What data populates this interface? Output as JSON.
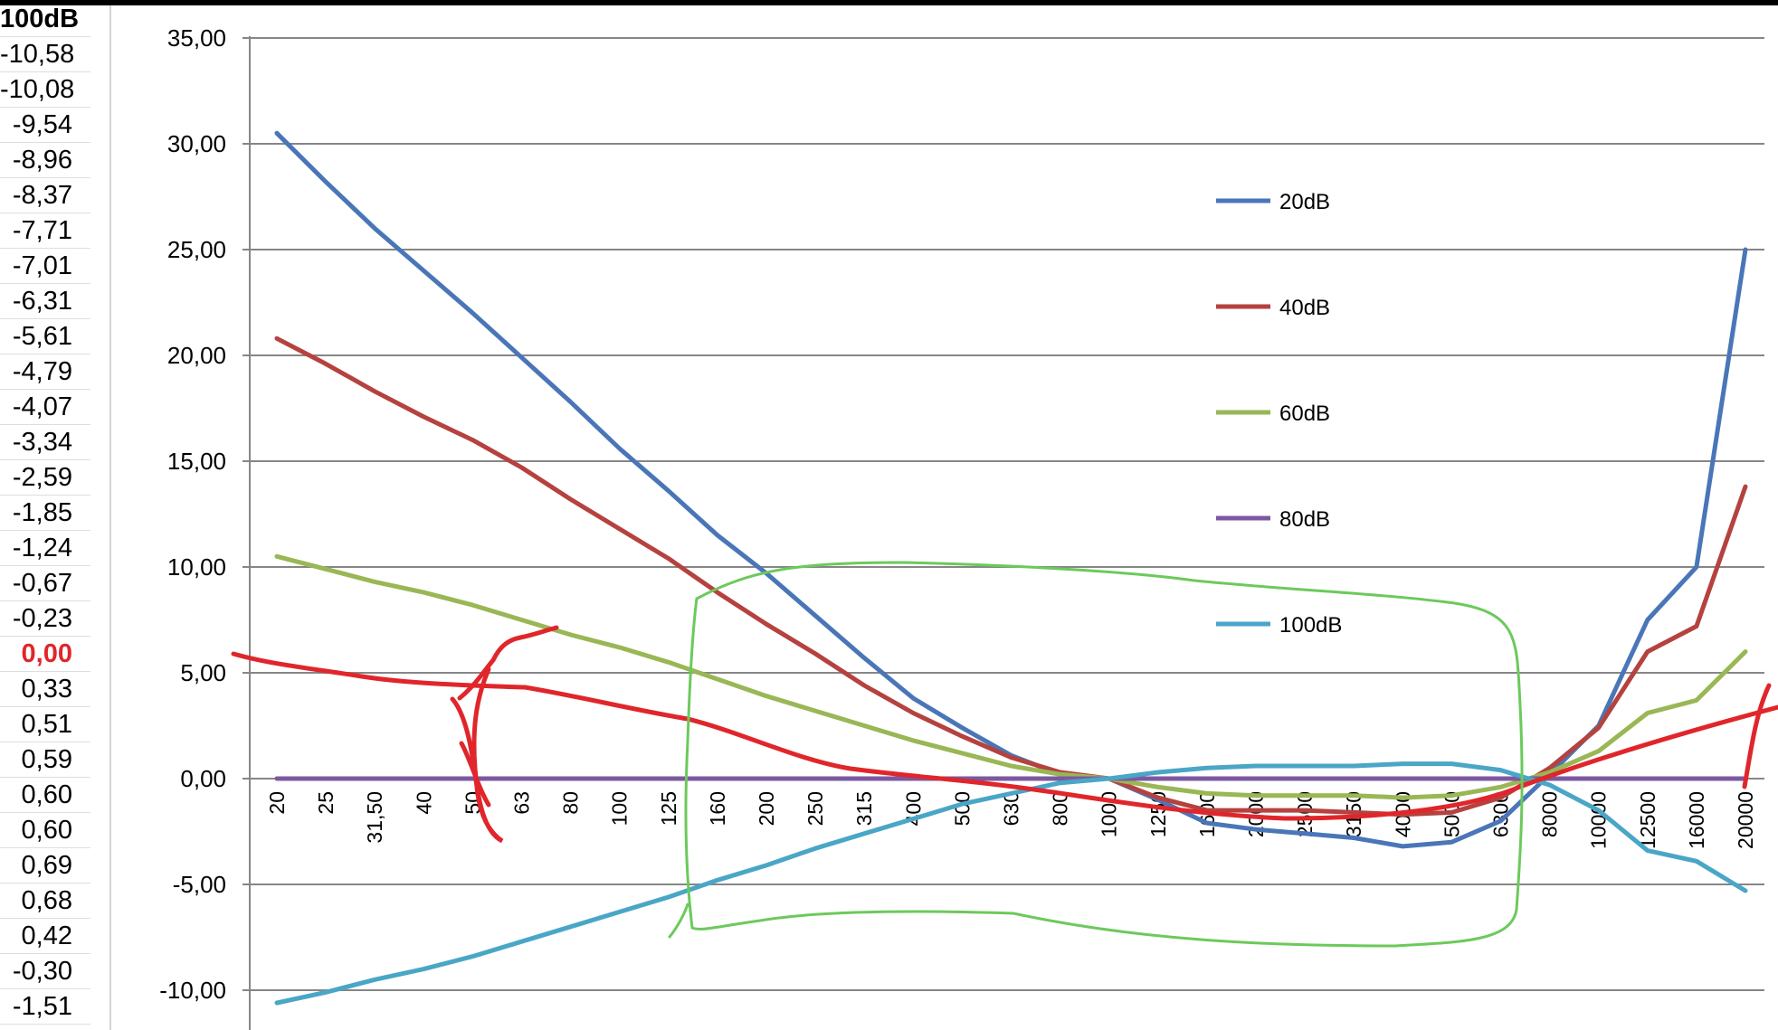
{
  "sheet_column": {
    "header": "100dB",
    "cells": [
      "-10,58",
      "-10,08",
      "-9,54",
      "-8,96",
      "-8,37",
      "-7,71",
      "-7,01",
      "-6,31",
      "-5,61",
      "-4,79",
      "-4,07",
      "-3,34",
      "-2,59",
      "-1,85",
      "-1,24",
      "-0,67",
      "-0,23",
      "0,00",
      "0,33",
      "0,51",
      "0,59",
      "0,60",
      "0,60",
      "0,69",
      "0,68",
      "0,42",
      "-0,30",
      "-1,51"
    ],
    "highlight_value": "0,00",
    "highlight_color": "#e0262b"
  },
  "colors": {
    "annotation_red": "#e0262b",
    "annotation_green": "#6cc95c"
  },
  "chart_data": {
    "type": "line",
    "title": "",
    "xlabel": "",
    "ylabel": "",
    "categories": [
      "20",
      "25",
      "31,50",
      "40",
      "50",
      "63",
      "80",
      "100",
      "125",
      "160",
      "200",
      "250",
      "315",
      "400",
      "500",
      "630",
      "800",
      "1000",
      "1250",
      "1600",
      "2000",
      "2500",
      "3150",
      "4000",
      "5000",
      "6300",
      "8000",
      "10000",
      "12500",
      "16000",
      "20000"
    ],
    "y_ticks": [
      "-10,00",
      "-5,00",
      "0,00",
      "5,00",
      "10,00",
      "15,00",
      "20,00",
      "25,00",
      "30,00",
      "35,00"
    ],
    "ylim": [
      -12,
      35
    ],
    "grid": true,
    "legend_position": "right",
    "series": [
      {
        "name": "20dB",
        "color": "#4a76b8",
        "values": [
          30.5,
          28.2,
          26.0,
          24.0,
          22.0,
          19.9,
          17.8,
          15.6,
          13.6,
          11.5,
          9.7,
          7.7,
          5.7,
          3.8,
          2.4,
          1.1,
          0.2,
          0.0,
          -1.0,
          -2.1,
          -2.4,
          -2.6,
          -2.8,
          -3.2,
          -3.0,
          -2.0,
          0.2,
          2.5,
          7.5,
          10.0,
          25.0
        ]
      },
      {
        "name": "40dB",
        "color": "#b5423f",
        "values": [
          20.8,
          19.6,
          18.3,
          17.1,
          16.0,
          14.7,
          13.2,
          11.8,
          10.4,
          8.8,
          7.3,
          5.9,
          4.4,
          3.1,
          2.0,
          1.0,
          0.3,
          0.0,
          -0.9,
          -1.5,
          -1.5,
          -1.5,
          -1.6,
          -1.7,
          -1.6,
          -0.9,
          0.5,
          2.4,
          6.0,
          7.2,
          13.8
        ]
      },
      {
        "name": "60dB",
        "color": "#99b755",
        "values": [
          10.5,
          9.9,
          9.3,
          8.8,
          8.2,
          7.5,
          6.8,
          6.2,
          5.5,
          4.7,
          3.9,
          3.2,
          2.5,
          1.8,
          1.2,
          0.6,
          0.2,
          0.0,
          -0.4,
          -0.7,
          -0.8,
          -0.8,
          -0.8,
          -0.9,
          -0.8,
          -0.4,
          0.3,
          1.3,
          3.1,
          3.7,
          6.0
        ]
      },
      {
        "name": "80dB",
        "color": "#7c58a0",
        "values": [
          0,
          0,
          0,
          0,
          0,
          0,
          0,
          0,
          0,
          0,
          0,
          0,
          0,
          0,
          0,
          0,
          0,
          0,
          0,
          0,
          0,
          0,
          0,
          0,
          0,
          0,
          0,
          0,
          0,
          0,
          0
        ]
      },
      {
        "name": "100dB",
        "color": "#4aa6c6",
        "values": [
          -10.6,
          -10.1,
          -9.5,
          -9.0,
          -8.4,
          -7.7,
          -7.0,
          -6.3,
          -5.6,
          -4.8,
          -4.1,
          -3.3,
          -2.6,
          -1.9,
          -1.2,
          -0.7,
          -0.2,
          0.0,
          0.3,
          0.5,
          0.6,
          0.6,
          0.6,
          0.7,
          0.7,
          0.4,
          -0.3,
          -1.5,
          -3.4,
          -3.9,
          -5.3
        ]
      }
    ]
  }
}
